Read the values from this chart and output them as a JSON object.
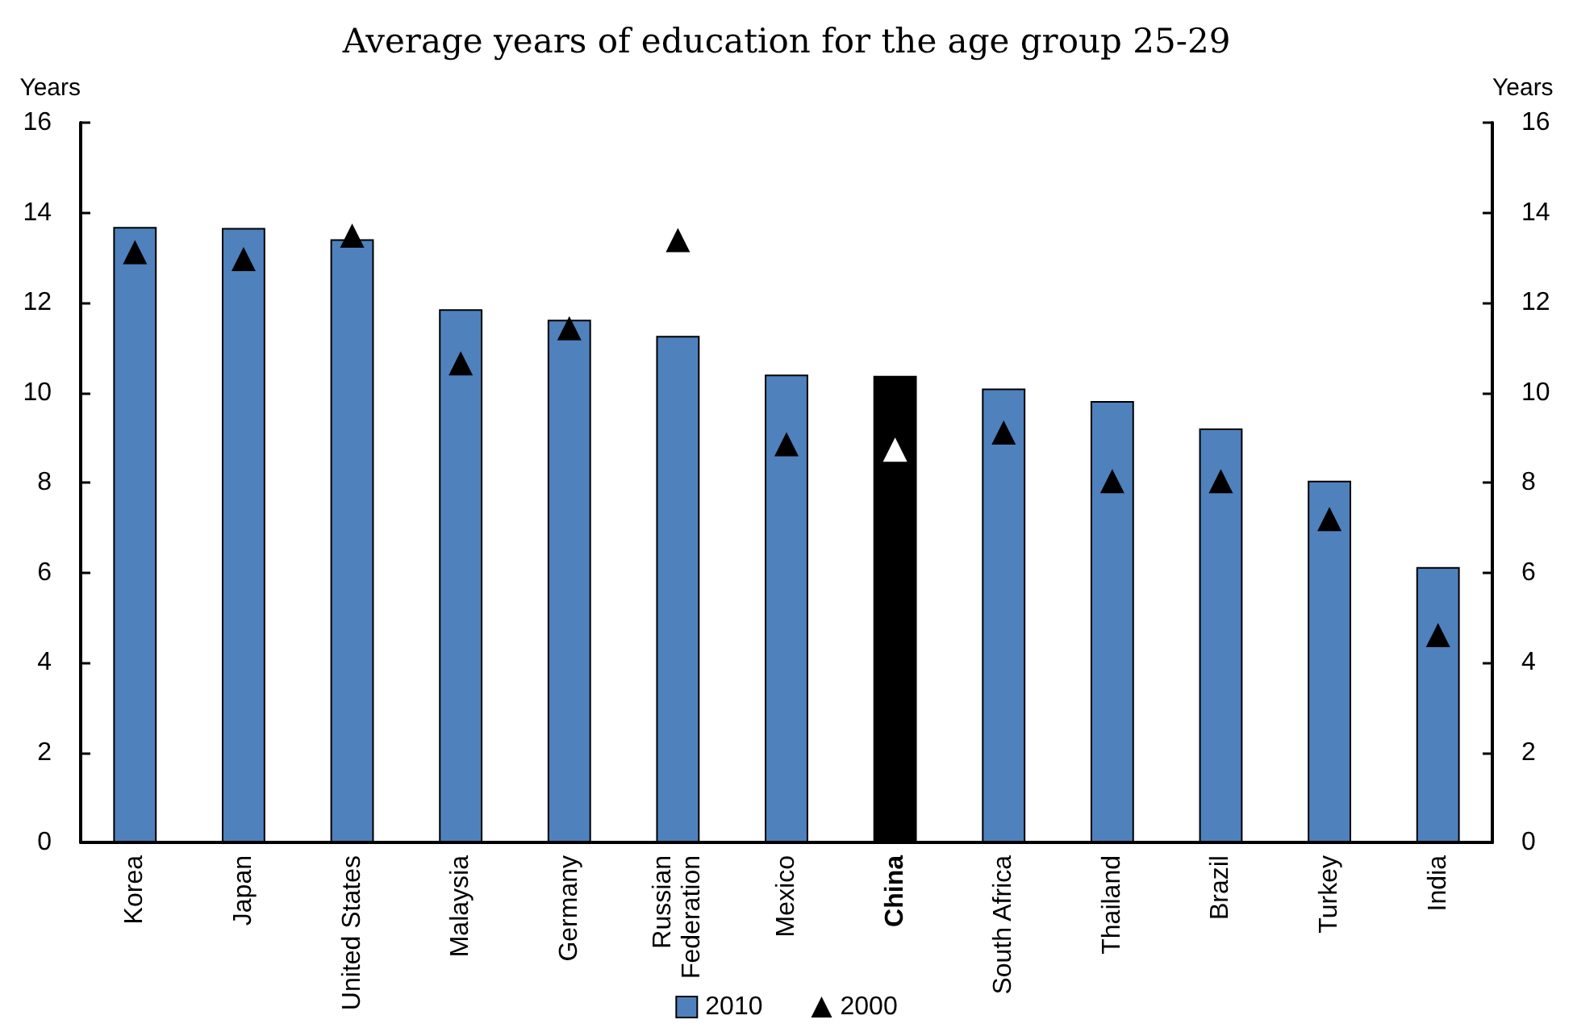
{
  "chart_data": {
    "type": "bar",
    "title": "Average years of education for the age group 25-29",
    "ylabel": "Years",
    "y2label": "Years",
    "categories": [
      "Korea",
      "Japan",
      "United States",
      "Malaysia",
      "Germany",
      "Russian Federation",
      "Mexico",
      "China",
      "South Africa",
      "Thailand",
      "Brazil",
      "Turkey",
      "India"
    ],
    "series": [
      {
        "name": "2010",
        "color": "#4f81bd",
        "colors": [
          "#4f81bd",
          "#4f81bd",
          "#4f81bd",
          "#4f81bd",
          "#4f81bd",
          "#4f81bd",
          "#4f81bd",
          "#000000",
          "#4f81bd",
          "#4f81bd",
          "#4f81bd",
          "#4f81bd",
          "#4f81bd"
        ],
        "values": [
          13.68,
          13.66,
          13.41,
          11.85,
          11.62,
          11.26,
          10.4,
          10.37,
          10.09,
          9.81,
          9.2,
          8.04,
          6.12
        ]
      },
      {
        "name": "2000",
        "type": "scatter",
        "marker": "triangle",
        "color": "#000000",
        "colors": [
          "#000000",
          "#000000",
          "#000000",
          "#000000",
          "#000000",
          "#000000",
          "#000000",
          "#ffffff",
          "#000000",
          "#000000",
          "#000000",
          "#000000",
          "#000000"
        ],
        "values": [
          13.12,
          12.97,
          13.49,
          10.65,
          11.43,
          13.39,
          8.85,
          8.73,
          9.11,
          8.03,
          8.03,
          7.19,
          4.61
        ]
      }
    ],
    "ylim": [
      0,
      16
    ],
    "yticks": [
      0,
      2,
      4,
      6,
      8,
      10,
      12,
      14,
      16
    ],
    "y2lim": [
      0,
      16
    ],
    "y2ticks": [
      0,
      2,
      4,
      6,
      8,
      10,
      12,
      14,
      16
    ],
    "grid": false,
    "legend": "bottom"
  }
}
